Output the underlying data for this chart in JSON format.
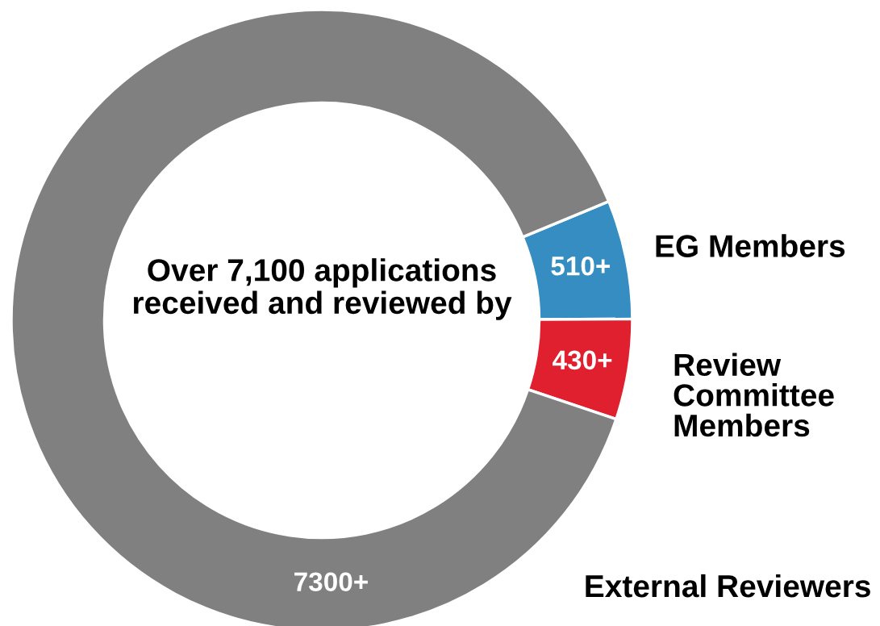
{
  "chart_data": {
    "type": "donut",
    "categories": [
      "EG Members",
      "Review Committee Members",
      "External Reviewers"
    ],
    "values": [
      510,
      430,
      7300
    ],
    "value_labels": [
      "510+",
      "430+",
      "7300+"
    ],
    "colors": [
      "#368dc1",
      "#e0202e",
      "#808080"
    ],
    "annotations": [
      "Over 7,100 applications received and reviewed by"
    ],
    "legend": false
  }
}
